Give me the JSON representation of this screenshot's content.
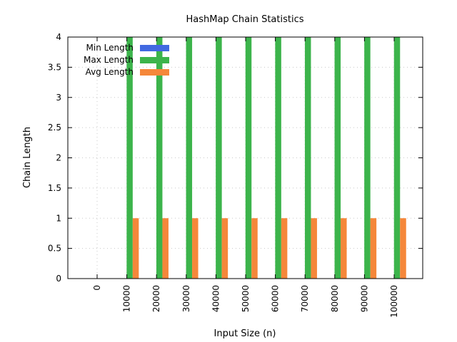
{
  "chart_data": {
    "type": "bar",
    "title": "HashMap Chain Statistics",
    "xlabel": "Input Size (n)",
    "ylabel": "Chain Length",
    "categories": [
      "0",
      "10000",
      "20000",
      "30000",
      "40000",
      "50000",
      "60000",
      "70000",
      "80000",
      "90000",
      "100000"
    ],
    "ylim": [
      0,
      4
    ],
    "yticks": [
      "0",
      "0.5",
      "1",
      "1.5",
      "2",
      "2.5",
      "3",
      "3.5",
      "4"
    ],
    "grid": true,
    "legend_position": "top-left",
    "series": [
      {
        "name": "Min Length",
        "color": "#4169e1",
        "values": [
          0,
          0,
          0,
          0,
          0,
          0,
          0,
          0,
          0,
          0,
          0
        ]
      },
      {
        "name": "Max Length",
        "color": "#3cb44b",
        "values": [
          0,
          4,
          4,
          4,
          4,
          4,
          4,
          4,
          4,
          4,
          4
        ]
      },
      {
        "name": "Avg Length",
        "color": "#f5873a",
        "values": [
          0,
          1,
          1,
          1,
          1,
          1,
          1,
          1,
          1,
          1,
          1
        ]
      }
    ]
  }
}
